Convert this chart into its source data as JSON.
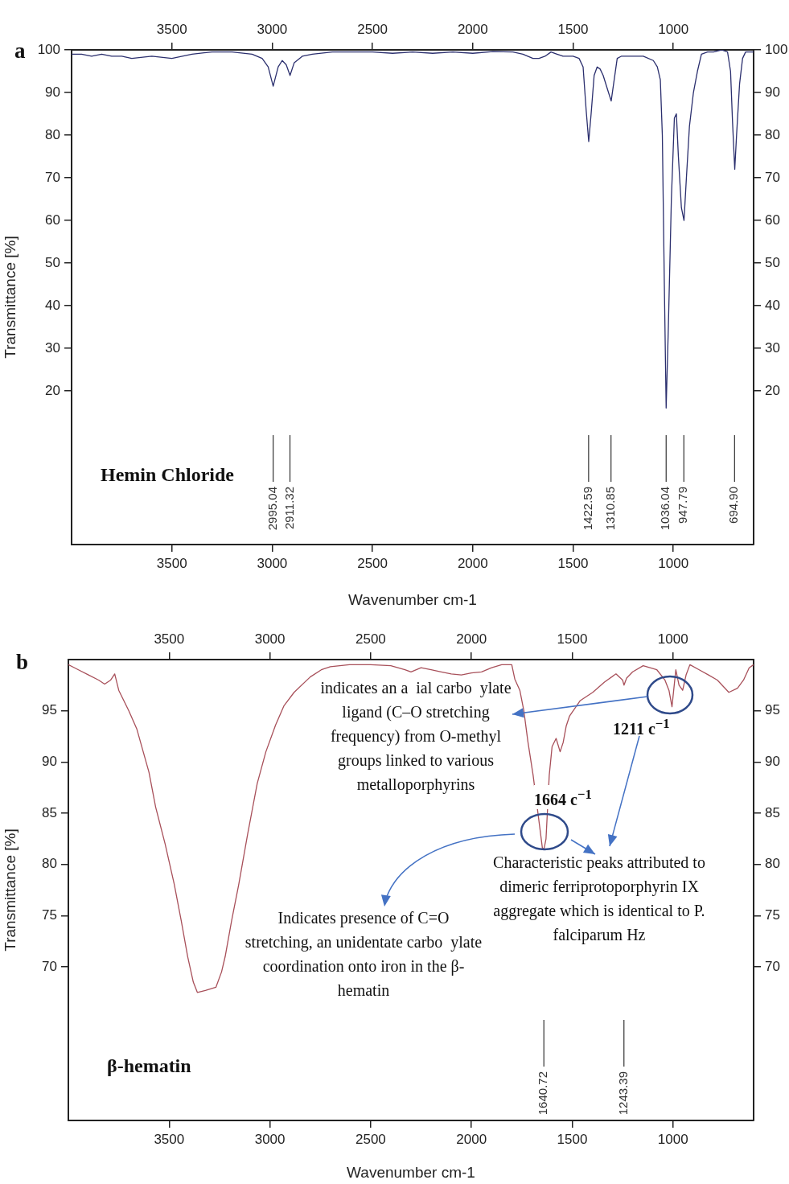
{
  "chart_data": [
    {
      "type": "line",
      "xlabel": "Wavenumber cm-1",
      "ylabel": "Transmittance [%]",
      "xlim": [
        4000,
        600
      ],
      "xticks": [
        3500,
        3000,
        2500,
        2000,
        1500,
        1000
      ],
      "x2lim": [
        4000,
        600
      ],
      "x2ticks": [
        3500,
        3000,
        2500,
        2000,
        1500,
        1000
      ],
      "ylim": [
        -16,
        100
      ],
      "yticks": [
        20,
        30,
        40,
        50,
        60,
        70,
        80,
        90,
        100
      ],
      "y2lim": [
        -16,
        100
      ],
      "y2ticks": [
        20,
        30,
        40,
        50,
        60,
        70,
        80,
        90,
        100
      ],
      "legend": false,
      "marker": "none",
      "x": [
        4000,
        3950,
        3900,
        3850,
        3800,
        3750,
        3700,
        3600,
        3500,
        3400,
        3300,
        3200,
        3100,
        3050,
        3020,
        2995,
        2970,
        2950,
        2930,
        2911,
        2890,
        2850,
        2800,
        2700,
        2600,
        2500,
        2400,
        2300,
        2200,
        2100,
        2000,
        1900,
        1800,
        1750,
        1700,
        1670,
        1640,
        1610,
        1580,
        1550,
        1500,
        1470,
        1450,
        1435,
        1422,
        1410,
        1395,
        1380,
        1365,
        1350,
        1330,
        1310,
        1295,
        1280,
        1260,
        1200,
        1150,
        1100,
        1080,
        1065,
        1055,
        1045,
        1036,
        1025,
        1010,
        995,
        985,
        975,
        960,
        947,
        935,
        920,
        900,
        880,
        860,
        830,
        800,
        760,
        730,
        715,
        705,
        694,
        685,
        670,
        655,
        640,
        620,
        600
      ],
      "series": [
        {
          "color": "#2b2f6e",
          "values": [
            99,
            99,
            98.5,
            99,
            98.5,
            98.5,
            98,
            98.5,
            98,
            99,
            99.5,
            99.5,
            99,
            98,
            96,
            91.5,
            96,
            97.5,
            96.5,
            94,
            97,
            98.5,
            99,
            99.5,
            99.5,
            99.5,
            99.2,
            99.5,
            99.2,
            99.5,
            99.2,
            99.6,
            99.5,
            99,
            98,
            98,
            98.5,
            99.5,
            99,
            98.5,
            98.5,
            98,
            96,
            86,
            78.5,
            85,
            94,
            96,
            95.5,
            94,
            91,
            88,
            93,
            98,
            98.5,
            98.5,
            98.5,
            97.5,
            96,
            93,
            80,
            45,
            16,
            35,
            65,
            84,
            85,
            75,
            63,
            60,
            70,
            82,
            90,
            95,
            99,
            99.5,
            99.5,
            100,
            99.5,
            95,
            83,
            72,
            80,
            92,
            98,
            99.5,
            99.5,
            99.5
          ]
        }
      ],
      "annotations": [
        "a",
        "Hemin Chloride"
      ],
      "ref_lines": [
        {
          "axis": "x",
          "value": 2995.04,
          "label": "2995.04"
        },
        {
          "axis": "x",
          "value": 2911.32,
          "label": "2911.32"
        },
        {
          "axis": "x",
          "value": 1422.59,
          "label": "1422.59"
        },
        {
          "axis": "x",
          "value": 1310.85,
          "label": "1310.85"
        },
        {
          "axis": "x",
          "value": 1036.04,
          "label": "1036.04"
        },
        {
          "axis": "x",
          "value": 947.79,
          "label": "947.79"
        },
        {
          "axis": "x",
          "value": 694.9,
          "label": "694.90"
        }
      ]
    },
    {
      "type": "line",
      "xlabel": "Wavenumber cm-1",
      "ylabel": "Transmittance [%]",
      "xlim": [
        4000,
        600
      ],
      "xticks": [
        3500,
        3000,
        2500,
        2000,
        1500,
        1000
      ],
      "x2lim": [
        4000,
        600
      ],
      "x2ticks": [
        3500,
        3000,
        2500,
        2000,
        1500,
        1000
      ],
      "ylim": [
        55,
        100
      ],
      "yticks": [
        70,
        75,
        80,
        85,
        90,
        95
      ],
      "y2lim": [
        55,
        100
      ],
      "y2ticks": [
        70,
        75,
        80,
        85,
        90,
        95
      ],
      "legend": false,
      "marker": "none",
      "x": [
        4000,
        3950,
        3900,
        3850,
        3820,
        3790,
        3770,
        3750,
        3700,
        3660,
        3600,
        3567,
        3520,
        3475,
        3440,
        3408,
        3380,
        3360,
        3320,
        3268,
        3240,
        3222,
        3190,
        3155,
        3110,
        3063,
        3020,
        2972,
        2930,
        2880,
        2800,
        2745,
        2700,
        2606,
        2500,
        2400,
        2330,
        2300,
        2250,
        2200,
        2150,
        2100,
        2050,
        2000,
        1950,
        1900,
        1850,
        1800,
        1785,
        1760,
        1740,
        1720,
        1694,
        1670,
        1648,
        1640,
        1630,
        1614,
        1600,
        1580,
        1560,
        1545,
        1530,
        1513,
        1460,
        1398,
        1340,
        1283,
        1250,
        1243,
        1230,
        1200,
        1148,
        1080,
        1040,
        1020,
        1005,
        986,
        970,
        952,
        935,
        916,
        870,
        824,
        780,
        723,
        680,
        650,
        622,
        600
      ],
      "series": [
        {
          "color": "#a8505a",
          "values": [
            99.5,
            99,
            98.5,
            98,
            97.6,
            98,
            98.6,
            97,
            95,
            93.2,
            89,
            85.6,
            82,
            78.1,
            74.5,
            71,
            68.5,
            67.5,
            67.7,
            68,
            69.5,
            71,
            74.5,
            78,
            83,
            87.9,
            91,
            93.6,
            95.5,
            96.8,
            98.3,
            99,
            99.3,
            99.5,
            99.5,
            99.4,
            99,
            98.8,
            99.2,
            99,
            98.8,
            98.6,
            98.5,
            98.7,
            98.8,
            99.2,
            99.5,
            99.5,
            98.1,
            97,
            95,
            92,
            88.7,
            85,
            81.6,
            81.5,
            82.5,
            88.7,
            91.5,
            92.3,
            91,
            91.9,
            93.5,
            94.5,
            96,
            96.8,
            97.8,
            98.6,
            98,
            97.5,
            98.2,
            98.8,
            99.4,
            99,
            98,
            97,
            95.4,
            99,
            97.5,
            97,
            98.5,
            99.5,
            99,
            98.5,
            98,
            96.8,
            97.2,
            98,
            99.2,
            99.5
          ]
        }
      ],
      "annotations": [
        "b",
        "β-hematin",
        "indicates an a  ial carbo  ylate ligand (C–O stretching frequency) from O-methyl groups linked to various metalloporphyrins",
        "1211 c$^{−1}$",
        "1664 c$^{−1}$",
        "Characteristic peaks attributed to dimeric ferriprotoporphyrin IX aggregate which is identical to P. falciparum Hz",
        "Indicates presence of C=O stretching, an unidentate carbo  ylate coordination onto iron in the β-hematin"
      ],
      "ref_lines": [
        {
          "axis": "x",
          "value": 1640.72,
          "label": "1640.72"
        },
        {
          "axis": "x",
          "value": 1243.39,
          "label": "1243.39"
        }
      ]
    }
  ]
}
